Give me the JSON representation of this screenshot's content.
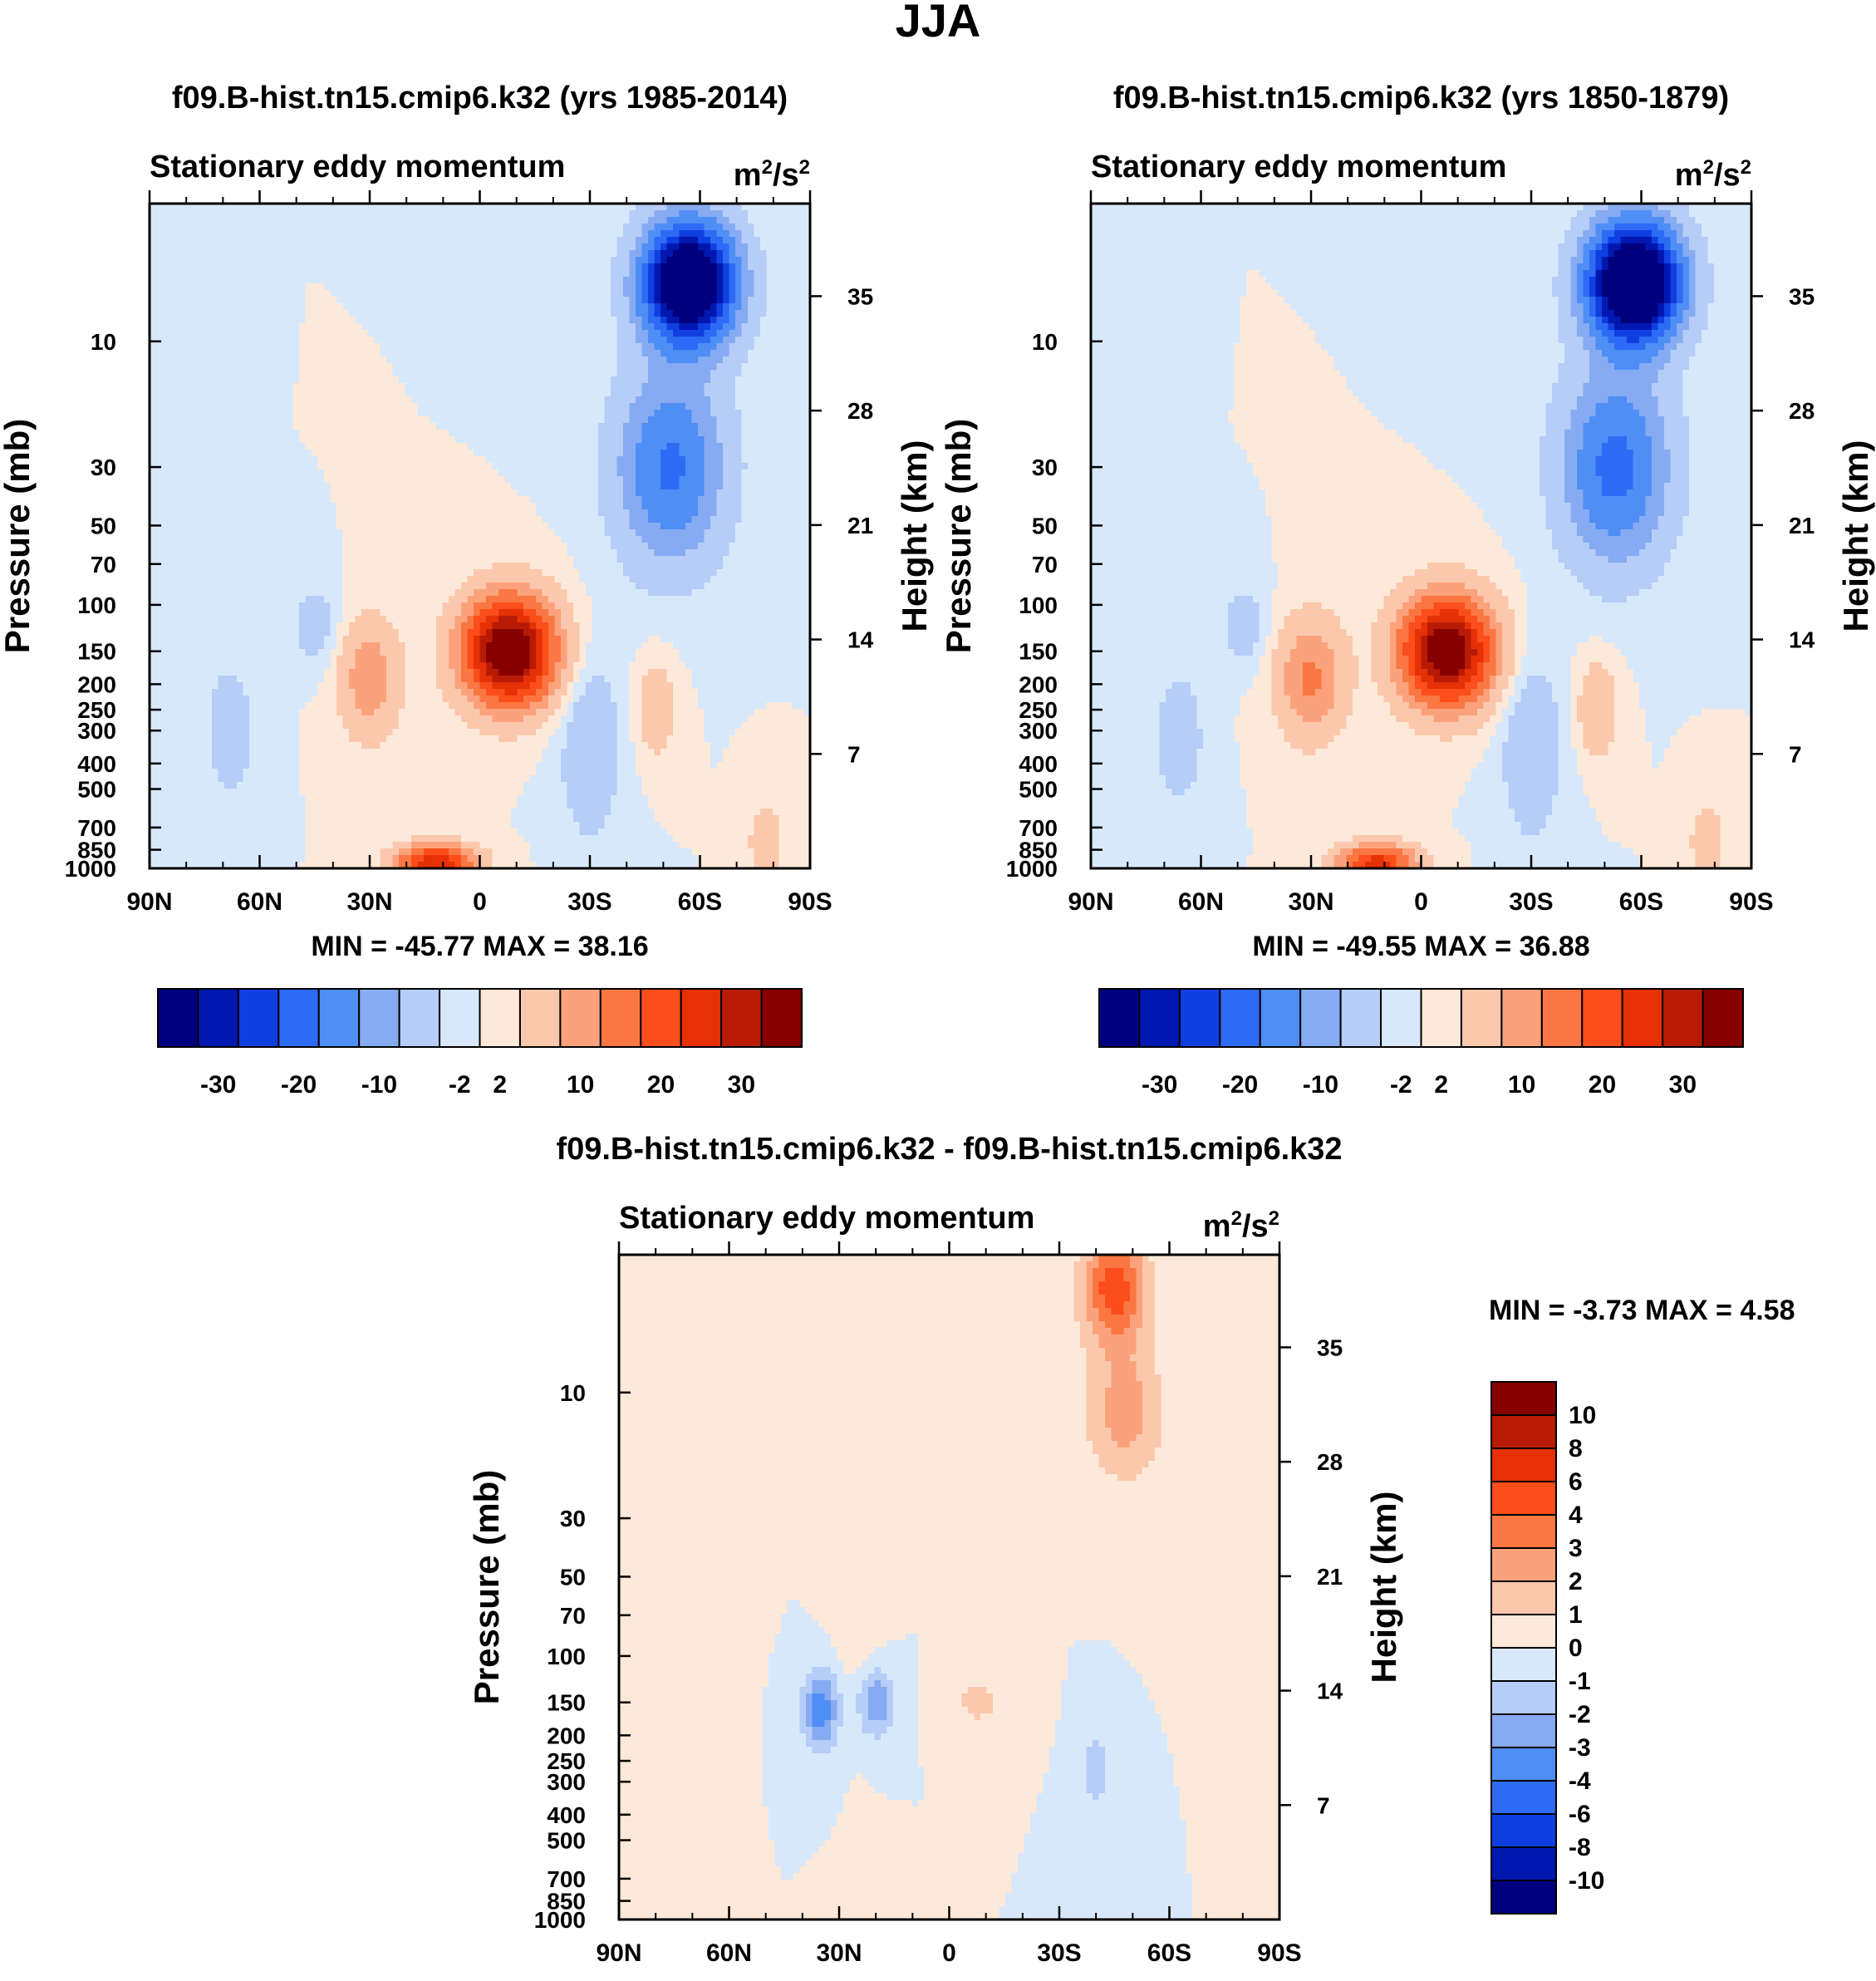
{
  "figure_title": "JJA",
  "chart_data": [
    {
      "type": "heatmap",
      "title": "f09.B-hist.tn15.cmip6.k32 (yrs 1985-2014)",
      "subtitle": "Stationary eddy momentum",
      "units_base": "m",
      "units_exp1": "2",
      "units_mid": "/s",
      "units_exp2": "2",
      "ylabel": "Pressure (mb)",
      "ylabel_right": "Height (km)",
      "x_ticks": [
        "90N",
        "60N",
        "30N",
        "0",
        "30S",
        "60S",
        "90S"
      ],
      "x_range": [
        90,
        -90
      ],
      "pressure_ticks": [
        10,
        30,
        50,
        70,
        100,
        150,
        200,
        250,
        300,
        400,
        500,
        700,
        850,
        1000
      ],
      "pressure_range": [
        3,
        1000
      ],
      "height_ticks": [
        7,
        14,
        21,
        28,
        35
      ],
      "stats_text": "MIN = -45.77  MAX =  38.16",
      "min": -45.77,
      "max": 38.16,
      "contour_levels": [
        -30,
        -25,
        -20,
        -15,
        -10,
        -6,
        -2,
        0,
        2,
        6,
        10,
        15,
        20,
        25,
        30
      ],
      "colorbar_labels": [
        "-30",
        "-20",
        "-10",
        "-2",
        "2",
        "10",
        "20",
        "30"
      ],
      "features": [
        {
          "lat": -57,
          "p": 6,
          "value": -45.8,
          "lat_width": 12,
          "p_width": 0.5,
          "tilt": 0
        },
        {
          "lat": -52,
          "p": 30,
          "value": -16,
          "lat_width": 14,
          "p_width": 0.8,
          "tilt": 0
        },
        {
          "lat": -8,
          "p": 150,
          "value": 38.2,
          "lat_width": 12,
          "p_width": 0.45,
          "tilt": 0
        },
        {
          "lat": 30,
          "p": 190,
          "value": 9,
          "lat_width": 8,
          "p_width": 0.5,
          "tilt": 0
        },
        {
          "lat": 12,
          "p": 950,
          "value": 25,
          "lat_width": 10,
          "p_width": 0.15,
          "tilt": 0
        },
        {
          "lat": 45,
          "p": 120,
          "value": -4,
          "lat_width": 6,
          "p_width": 0.35,
          "tilt": 0
        },
        {
          "lat": 68,
          "p": 300,
          "value": -4,
          "lat_width": 7,
          "p_width": 0.6,
          "tilt": 0
        },
        {
          "lat": -30,
          "p": 350,
          "value": -5,
          "lat_width": 8,
          "p_width": 0.8,
          "tilt": 0
        },
        {
          "lat": -48,
          "p": 250,
          "value": 5,
          "lat_width": 5,
          "p_width": 0.4,
          "tilt": 0
        },
        {
          "lat": -78,
          "p": 800,
          "value": 4,
          "lat_width": 5,
          "p_width": 0.4,
          "tilt": 0
        }
      ]
    },
    {
      "type": "heatmap",
      "title": "f09.B-hist.tn15.cmip6.k32 (yrs 1850-1879)",
      "subtitle": "Stationary eddy momentum",
      "units_base": "m",
      "units_exp1": "2",
      "units_mid": "/s",
      "units_exp2": "2",
      "ylabel": "Pressure (mb)",
      "ylabel_right": "Height (km)",
      "x_ticks": [
        "90N",
        "60N",
        "30N",
        "0",
        "30S",
        "60S",
        "90S"
      ],
      "x_range": [
        90,
        -90
      ],
      "pressure_ticks": [
        10,
        30,
        50,
        70,
        100,
        150,
        200,
        250,
        300,
        400,
        500,
        700,
        850,
        1000
      ],
      "pressure_range": [
        3,
        1000
      ],
      "height_ticks": [
        7,
        14,
        21,
        28,
        35
      ],
      "stats_text": "MIN = -49.55  MAX =  36.88",
      "min": -49.55,
      "max": 36.88,
      "contour_levels": [
        -30,
        -25,
        -20,
        -15,
        -10,
        -6,
        -2,
        0,
        2,
        6,
        10,
        15,
        20,
        25,
        30
      ],
      "colorbar_labels": [
        "-30",
        "-20",
        "-10",
        "-2",
        "2",
        "10",
        "20",
        "30"
      ],
      "features": [
        {
          "lat": -58,
          "p": 6,
          "value": -49.5,
          "lat_width": 12,
          "p_width": 0.5,
          "tilt": 0
        },
        {
          "lat": -53,
          "p": 30,
          "value": -17,
          "lat_width": 14,
          "p_width": 0.8,
          "tilt": 0
        },
        {
          "lat": -7,
          "p": 150,
          "value": 36.9,
          "lat_width": 12,
          "p_width": 0.45,
          "tilt": 0
        },
        {
          "lat": 30,
          "p": 190,
          "value": 11,
          "lat_width": 9,
          "p_width": 0.5,
          "tilt": 0
        },
        {
          "lat": 12,
          "p": 950,
          "value": 22,
          "lat_width": 10,
          "p_width": 0.15,
          "tilt": 0
        },
        {
          "lat": 48,
          "p": 120,
          "value": -4,
          "lat_width": 6,
          "p_width": 0.35,
          "tilt": 0
        },
        {
          "lat": 66,
          "p": 320,
          "value": -4,
          "lat_width": 7,
          "p_width": 0.6,
          "tilt": 0
        },
        {
          "lat": -30,
          "p": 350,
          "value": -5,
          "lat_width": 8,
          "p_width": 0.8,
          "tilt": 0
        },
        {
          "lat": -48,
          "p": 250,
          "value": 6,
          "lat_width": 5,
          "p_width": 0.4,
          "tilt": 0
        },
        {
          "lat": -78,
          "p": 800,
          "value": 4,
          "lat_width": 5,
          "p_width": 0.4,
          "tilt": 0
        }
      ]
    },
    {
      "type": "heatmap",
      "title": "f09.B-hist.tn15.cmip6.k32 - f09.B-hist.tn15.cmip6.k32",
      "subtitle": "Stationary eddy momentum",
      "units_base": "m",
      "units_exp1": "2",
      "units_mid": "/s",
      "units_exp2": "2",
      "ylabel": "Pressure (mb)",
      "ylabel_right": "Height (km)",
      "x_ticks": [
        "90N",
        "60N",
        "30N",
        "0",
        "30S",
        "60S",
        "90S"
      ],
      "x_range": [
        90,
        -90
      ],
      "pressure_ticks": [
        10,
        30,
        50,
        70,
        100,
        150,
        200,
        250,
        300,
        400,
        500,
        700,
        850,
        1000
      ],
      "pressure_range": [
        3,
        1000
      ],
      "height_ticks": [
        7,
        14,
        21,
        28,
        35
      ],
      "stats_text": "MIN =  -3.73  MAX =   4.58",
      "min": -3.73,
      "max": 4.58,
      "contour_levels": [
        -10,
        -8,
        -6,
        -4,
        -3,
        -2,
        -1,
        0,
        1,
        2,
        3,
        4,
        6,
        8,
        10
      ],
      "colorbar_labels": [
        "10",
        "8",
        "6",
        "4",
        "3",
        "2",
        "1",
        "0",
        "-1",
        "-2",
        "-3",
        "-4",
        "-6",
        "-8",
        "-10"
      ],
      "features": [
        {
          "lat": -45,
          "p": 4,
          "value": 4.6,
          "lat_width": 9,
          "p_width": 0.5,
          "tilt": 0
        },
        {
          "lat": -48,
          "p": 12,
          "value": 2.5,
          "lat_width": 11,
          "p_width": 0.6,
          "tilt": 0
        },
        {
          "lat": 35,
          "p": 160,
          "value": -3.7,
          "lat_width": 5,
          "p_width": 0.35,
          "tilt": 0
        },
        {
          "lat": 20,
          "p": 150,
          "value": -3.0,
          "lat_width": 5,
          "p_width": 0.3,
          "tilt": 0
        },
        {
          "lat": -8,
          "p": 150,
          "value": 1.3,
          "lat_width": 8,
          "p_width": 0.25,
          "tilt": 0
        },
        {
          "lat": -40,
          "p": 270,
          "value": -1.8,
          "lat_width": 4,
          "p_width": 0.35,
          "tilt": 0
        },
        {
          "lat": 25,
          "p": 60,
          "value": 0.8,
          "lat_width": 6,
          "p_width": 0.8,
          "tilt": 0
        },
        {
          "lat": 62,
          "p": 15,
          "value": 0.7,
          "lat_width": 7,
          "p_width": 1.0,
          "tilt": 0
        }
      ]
    }
  ],
  "colors": {
    "scale16": [
      "#00007f",
      "#0018b0",
      "#0f3fe0",
      "#2e6bf5",
      "#4f8ef5",
      "#86abf2",
      "#b5cdf7",
      "#d8e8fb",
      "#fde9d9",
      "#fcc8ad",
      "#fba27c",
      "#fa7743",
      "#fb4e1b",
      "#e63005",
      "#b81b05",
      "#870000"
    ],
    "background_fill": "#d8e8fb",
    "axis": "#000000"
  }
}
